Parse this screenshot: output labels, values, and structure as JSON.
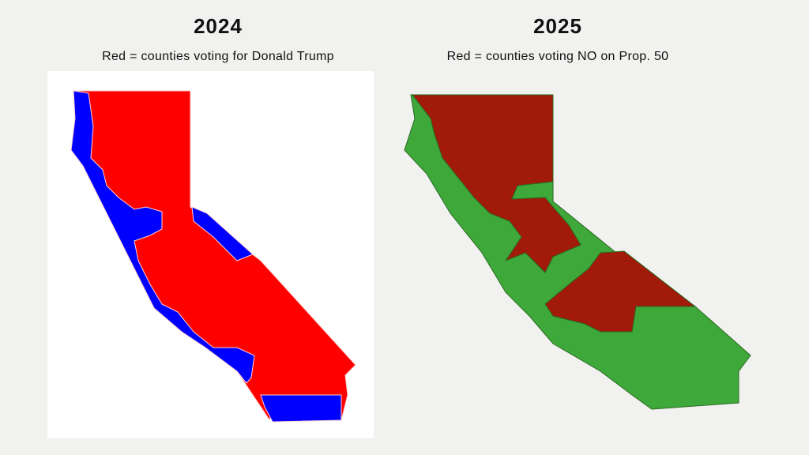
{
  "panels": [
    {
      "year": "2024",
      "caption": "Red = counties voting for Donald Trump"
    },
    {
      "year": "2025",
      "caption": "Red = counties voting NO on Prop. 50"
    }
  ]
}
